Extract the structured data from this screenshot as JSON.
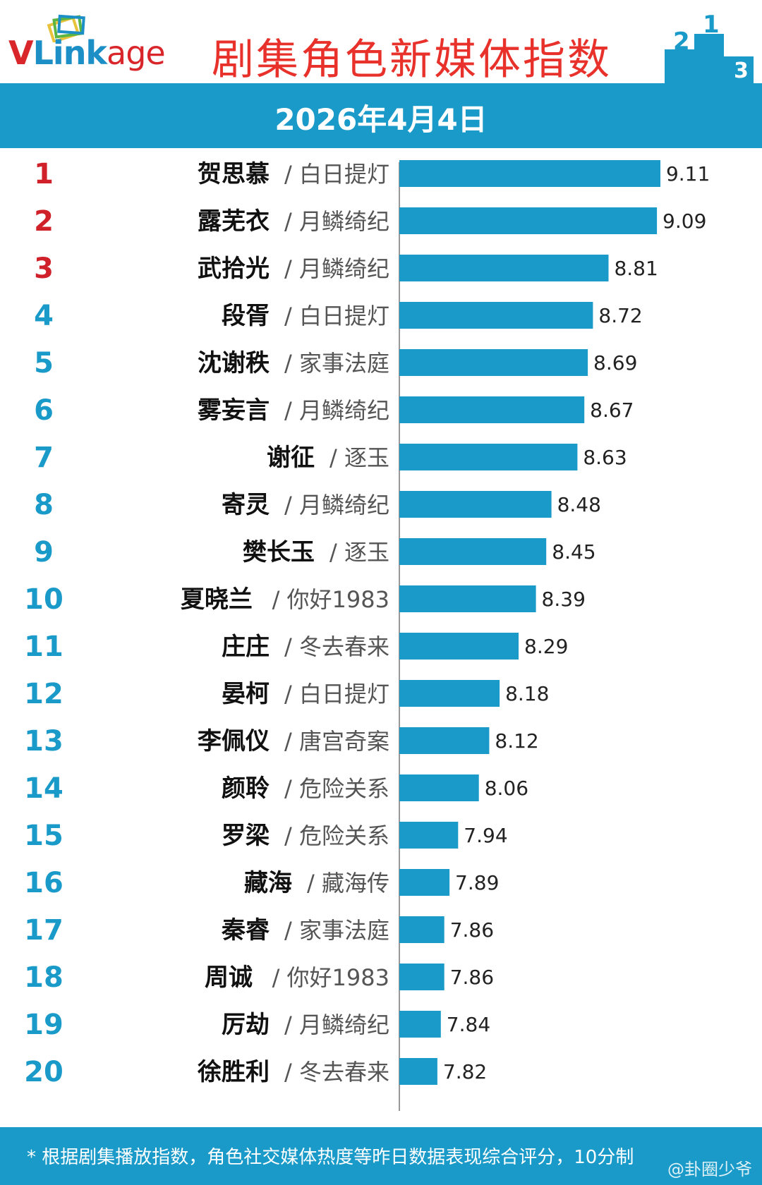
{
  "header": {
    "logo_v": "V",
    "logo_link": "Link",
    "logo_age": "age",
    "title": "剧集角色新媒体指数",
    "podium": [
      "2",
      "1",
      "3"
    ]
  },
  "date": "2026年4月4日",
  "chart_data": {
    "type": "bar",
    "orientation": "horizontal",
    "title": "剧集角色新媒体指数",
    "subtitle": "2026年4月4日",
    "xlim": [
      7.6,
      9.2
    ],
    "grid": false,
    "rows": [
      {
        "rank": "1",
        "name": "贺思慕",
        "drama": "/ 白日提灯",
        "value": 9.11
      },
      {
        "rank": "2",
        "name": "露芜衣",
        "drama": "/ 月鳞绮纪",
        "value": 9.09
      },
      {
        "rank": "3",
        "name": "武拾光",
        "drama": "/ 月鳞绮纪",
        "value": 8.81
      },
      {
        "rank": "4",
        "name": "段胥",
        "drama": "/ 白日提灯",
        "value": 8.72
      },
      {
        "rank": "5",
        "name": "沈谢秩",
        "drama": "/ 家事法庭",
        "value": 8.69
      },
      {
        "rank": "6",
        "name": "雾妄言",
        "drama": "/ 月鳞绮纪",
        "value": 8.67
      },
      {
        "rank": "7",
        "name": "谢征",
        "drama": "/ 逐玉",
        "value": 8.63
      },
      {
        "rank": "8",
        "name": "寄灵",
        "drama": "/ 月鳞绮纪",
        "value": 8.48
      },
      {
        "rank": "9",
        "name": "樊长玉",
        "drama": "/ 逐玉",
        "value": 8.45
      },
      {
        "rank": "10",
        "name": "夏晓兰",
        "drama": "/ 你好1983",
        "value": 8.39
      },
      {
        "rank": "11",
        "name": "庄庄",
        "drama": "/ 冬去春来",
        "value": 8.29
      },
      {
        "rank": "12",
        "name": "晏柯",
        "drama": "/ 白日提灯",
        "value": 8.18
      },
      {
        "rank": "13",
        "name": "李佩仪",
        "drama": "/ 唐宫奇案",
        "value": 8.12
      },
      {
        "rank": "14",
        "name": "颜聆",
        "drama": "/ 危险关系",
        "value": 8.06
      },
      {
        "rank": "15",
        "name": "罗梁",
        "drama": "/ 危险关系",
        "value": 7.94
      },
      {
        "rank": "16",
        "name": "藏海",
        "drama": "/ 藏海传",
        "value": 7.89
      },
      {
        "rank": "17",
        "name": "秦睿",
        "drama": "/ 家事法庭",
        "value": 7.86
      },
      {
        "rank": "18",
        "name": "周诚",
        "drama": "/ 你好1983",
        "value": 7.86
      },
      {
        "rank": "19",
        "name": "厉劫",
        "drama": "/ 月鳞绮纪",
        "value": 7.84
      },
      {
        "rank": "20",
        "name": "徐胜利",
        "drama": "/ 冬去春来",
        "value": 7.82
      }
    ]
  },
  "colors": {
    "bar": "#1a9ac8",
    "rank_top": "#d0202a",
    "rank_other": "#1a9ac8",
    "title": "#e8312b"
  },
  "footer": {
    "note": "* 根据剧集播放指数，角色社交媒体热度等昨日数据表现综合评分，10分制",
    "watermark": "@卦圈少爷"
  }
}
